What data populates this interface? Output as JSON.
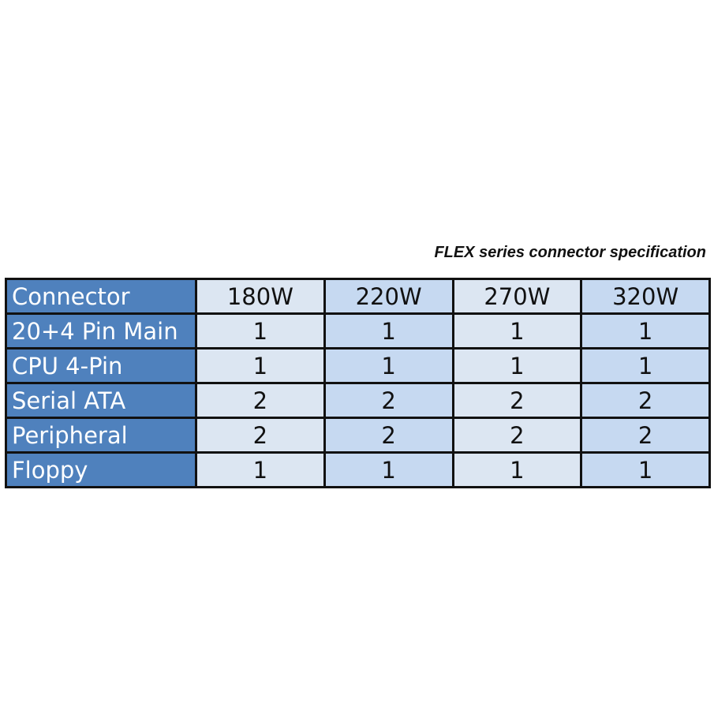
{
  "caption": "FLEX series connector specification",
  "table": {
    "header": [
      "Connector",
      "180W",
      "220W",
      "270W",
      "320W"
    ],
    "rows": [
      [
        "20+4 Pin Main",
        "1",
        "1",
        "1",
        "1"
      ],
      [
        "CPU 4-Pin",
        "1",
        "1",
        "1",
        "1"
      ],
      [
        "Serial ATA",
        "2",
        "2",
        "2",
        "2"
      ],
      [
        "Peripheral",
        "2",
        "2",
        "2",
        "2"
      ],
      [
        "Floppy",
        "1",
        "1",
        "1",
        "1"
      ]
    ]
  },
  "colors": {
    "label_column": "#4f81bd",
    "light_column": "#dce6f2",
    "dark_column": "#c6d9f1"
  }
}
